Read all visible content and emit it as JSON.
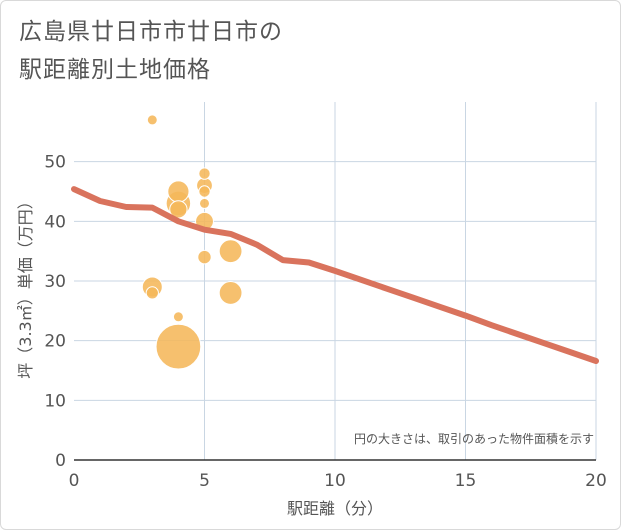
{
  "chart_data": {
    "type": "scatter",
    "title_lines": [
      "広島県廿日市市廿日市の",
      "駅距離別土地価格"
    ],
    "xlabel": "駅距離（分）",
    "ylabel": "坪（3.3㎡）単価（万円）",
    "xlim": [
      0,
      20
    ],
    "ylim": [
      0,
      60
    ],
    "x_ticks": [
      0,
      5,
      10,
      15,
      20
    ],
    "y_ticks": [
      0,
      10,
      20,
      30,
      40,
      50
    ],
    "grid": true,
    "note": "円の大きさは、取引のあった物件面積を示す",
    "bubbles": [
      {
        "x": 3,
        "y": 57,
        "size": 1
      },
      {
        "x": 3,
        "y": 29,
        "size": 4
      },
      {
        "x": 3,
        "y": 28,
        "size": 1.5
      },
      {
        "x": 4,
        "y": 45,
        "size": 4.5
      },
      {
        "x": 4,
        "y": 43,
        "size": 6
      },
      {
        "x": 4,
        "y": 42,
        "size": 3
      },
      {
        "x": 4,
        "y": 24,
        "size": 1
      },
      {
        "x": 4,
        "y": 19,
        "size": 20
      },
      {
        "x": 5,
        "y": 48,
        "size": 1.3
      },
      {
        "x": 5,
        "y": 46,
        "size": 2.5
      },
      {
        "x": 5,
        "y": 45,
        "size": 1.3
      },
      {
        "x": 5,
        "y": 43,
        "size": 1
      },
      {
        "x": 5,
        "y": 40,
        "size": 3.2
      },
      {
        "x": 5,
        "y": 34,
        "size": 1.8
      },
      {
        "x": 6,
        "y": 35,
        "size": 5.2
      },
      {
        "x": 6,
        "y": 28,
        "size": 5.2
      }
    ],
    "trend": {
      "x": [
        0,
        1,
        2,
        3,
        4,
        5,
        6,
        7,
        8,
        9,
        10,
        11,
        12,
        13,
        14,
        15,
        16,
        17,
        18,
        19,
        20
      ],
      "y": [
        45.4,
        43.4,
        42.4,
        42.3,
        40.0,
        38.6,
        37.9,
        36.1,
        33.5,
        33.1,
        31.7,
        30.2,
        28.7,
        27.2,
        25.7,
        24.2,
        22.6,
        21.1,
        19.6,
        18.1,
        16.6
      ]
    },
    "colors": {
      "bubble": "#f5b75a",
      "bubble_stroke": "#ffffff",
      "trend": "#d9735d",
      "grid": "#c9d6e3",
      "axis": "#333333"
    }
  }
}
